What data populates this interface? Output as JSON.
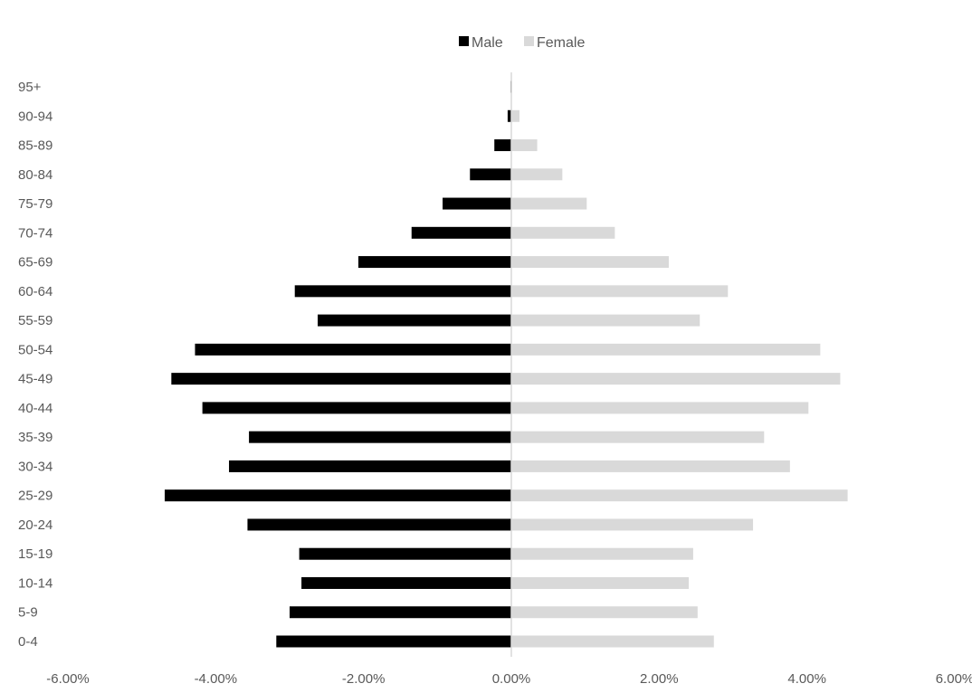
{
  "chart_data": {
    "type": "bar",
    "orientation": "horizontal",
    "title": "",
    "xlabel": "",
    "ylabel": "",
    "categories": [
      "0-4",
      "5-9",
      "10-14",
      "15-19",
      "20-24",
      "25-29",
      "30-34",
      "35-39",
      "40-44",
      "45-49",
      "50-54",
      "55-59",
      "60-64",
      "65-69",
      "70-74",
      "75-79",
      "80-84",
      "85-89",
      "90-94",
      "95+"
    ],
    "series": [
      {
        "name": "Male",
        "color": "#000000",
        "values": [
          -3.18,
          -3.0,
          -2.84,
          -2.87,
          -3.57,
          -4.69,
          -3.82,
          -3.55,
          -4.18,
          -4.6,
          -4.28,
          -2.62,
          -2.93,
          -2.07,
          -1.35,
          -0.93,
          -0.56,
          -0.23,
          -0.05,
          -0.01
        ]
      },
      {
        "name": "Female",
        "color": "#d9d9d9",
        "values": [
          2.74,
          2.52,
          2.4,
          2.46,
          3.27,
          4.55,
          3.77,
          3.42,
          4.02,
          4.45,
          4.18,
          2.55,
          2.93,
          2.13,
          1.4,
          1.02,
          0.69,
          0.35,
          0.11,
          0.01
        ]
      }
    ],
    "xlim": [
      -6,
      6
    ],
    "xticks": [
      -6,
      -4,
      -2,
      0,
      2,
      4,
      6
    ],
    "xtick_labels": [
      "-6.00%",
      "-4.00%",
      "-2.00%",
      "0.00%",
      "2.00%",
      "4.00%",
      "6.00%"
    ],
    "grid": false,
    "legend_position": "top-center",
    "axis_color": "#d9d9d9"
  }
}
